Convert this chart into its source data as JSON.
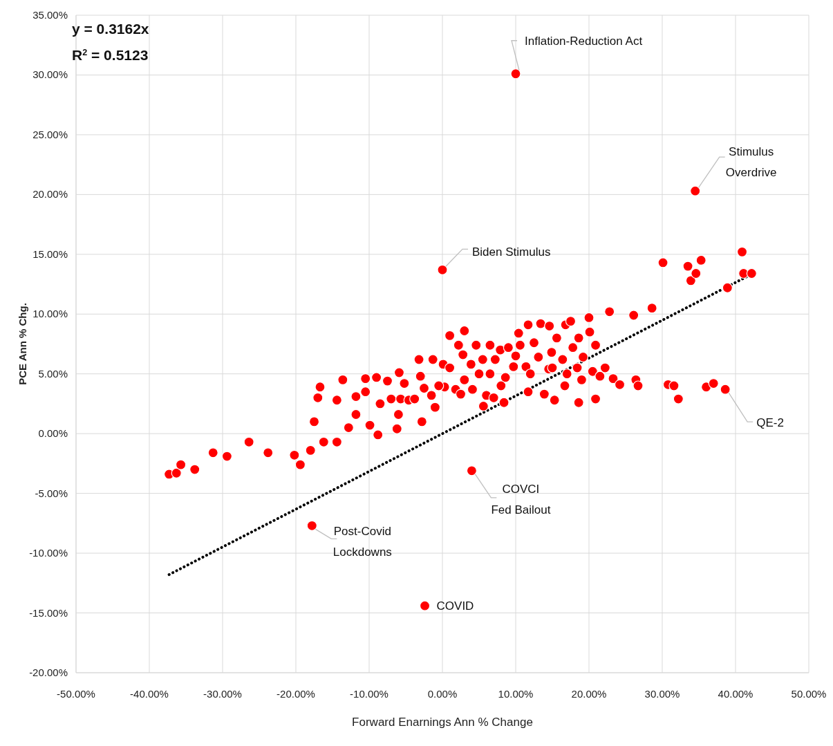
{
  "chart_data": {
    "type": "scatter",
    "xlabel": "Forward Enarnings Ann % Change",
    "ylabel": "PCE Ann % Chg.",
    "xlim": [
      -50,
      50
    ],
    "ylim": [
      -20,
      35
    ],
    "xticks": [
      {
        "value": -50,
        "label": "-50.00%"
      },
      {
        "value": -40,
        "label": "-40.00%"
      },
      {
        "value": -30,
        "label": "-30.00%"
      },
      {
        "value": -20,
        "label": "-20.00%"
      },
      {
        "value": -10,
        "label": "-10.00%"
      },
      {
        "value": 0,
        "label": "0.00%"
      },
      {
        "value": 10,
        "label": "10.00%"
      },
      {
        "value": 20,
        "label": "20.00%"
      },
      {
        "value": 30,
        "label": "30.00%"
      },
      {
        "value": 40,
        "label": "40.00%"
      },
      {
        "value": 50,
        "label": "50.00%"
      }
    ],
    "yticks": [
      {
        "value": -20,
        "label": "-20.00%"
      },
      {
        "value": -15,
        "label": "-15.00%"
      },
      {
        "value": -10,
        "label": "-10.00%"
      },
      {
        "value": -5,
        "label": "-5.00%"
      },
      {
        "value": 0,
        "label": "0.00%"
      },
      {
        "value": 5,
        "label": "5.00%"
      },
      {
        "value": 10,
        "label": "10.00%"
      },
      {
        "value": 15,
        "label": "15.00%"
      },
      {
        "value": 20,
        "label": "20.00%"
      },
      {
        "value": 25,
        "label": "25.00%"
      },
      {
        "value": 30,
        "label": "30.00%"
      },
      {
        "value": 35,
        "label": "35.00%"
      }
    ],
    "grid": true,
    "marker": "circle",
    "series": [
      {
        "color": "#ff0000",
        "x": [
          10.0,
          34.5,
          0.0,
          38.6,
          4.0,
          -17.8,
          -2.4,
          -37.3,
          -36.3,
          -35.7,
          -33.8,
          -31.3,
          -29.4,
          -26.4,
          -23.8,
          -20.2,
          -19.4,
          -18.0,
          -17.5,
          -17.0,
          -16.7,
          -16.2,
          -14.4,
          -14.4,
          -13.6,
          -12.8,
          -11.8,
          -11.8,
          -10.5,
          -10.5,
          -9.9,
          -8.8,
          -9.0,
          -8.5,
          -7.5,
          -7.0,
          -6.2,
          -6.0,
          -5.9,
          -5.7,
          -5.2,
          -4.6,
          -3.8,
          -3.2,
          -3.0,
          -2.8,
          -2.5,
          -1.5,
          -1.3,
          -1.0,
          0.1,
          0.3,
          1.0,
          1.8,
          2.2,
          2.8,
          3.0,
          3.9,
          4.1,
          4.6,
          5.5,
          5.6,
          6.0,
          6.5,
          7.2,
          7.9,
          8.4,
          8.6,
          9.0,
          9.7,
          10.4,
          10.6,
          11.4,
          11.7,
          11.7,
          12.5,
          13.1,
          13.4,
          13.9,
          14.5,
          14.6,
          14.9,
          15.3,
          15.6,
          16.4,
          16.7,
          16.8,
          17.5,
          17.8,
          18.4,
          18.6,
          18.6,
          19.2,
          20.0,
          20.1,
          20.5,
          20.9,
          20.9,
          22.2,
          22.8,
          23.3,
          24.2,
          26.1,
          26.4,
          26.7,
          28.6,
          30.1,
          30.8,
          31.6,
          32.2,
          33.5,
          33.9,
          34.6,
          35.3,
          36.0,
          37.0,
          38.9,
          40.9,
          41.1,
          42.2,
          6.5,
          8.0,
          10.0,
          12.0,
          3.0,
          5.0,
          15.0,
          17.0,
          19.0,
          21.5,
          1.0,
          -0.5,
          2.5,
          7.0
        ],
        "values": [
          30.1,
          20.3,
          13.7,
          3.7,
          -3.1,
          -7.7,
          -14.4,
          -3.4,
          -3.3,
          -2.6,
          -3.0,
          -1.6,
          -1.9,
          -0.7,
          -1.6,
          -1.8,
          -2.6,
          -1.4,
          1.0,
          3.0,
          3.9,
          -0.7,
          2.8,
          -0.7,
          4.5,
          0.5,
          1.6,
          3.1,
          3.5,
          4.6,
          0.7,
          -0.1,
          4.7,
          2.5,
          4.4,
          2.9,
          0.4,
          1.6,
          5.1,
          2.9,
          4.2,
          2.8,
          2.9,
          6.2,
          4.8,
          1.0,
          3.8,
          3.2,
          6.2,
          2.2,
          5.8,
          3.9,
          8.2,
          3.7,
          7.4,
          6.6,
          8.6,
          5.8,
          3.7,
          7.4,
          6.2,
          2.3,
          3.2,
          7.4,
          6.2,
          7.0,
          2.6,
          4.7,
          7.2,
          5.6,
          8.4,
          7.4,
          5.6,
          9.1,
          3.5,
          7.6,
          6.4,
          9.2,
          3.3,
          5.4,
          9.0,
          6.8,
          2.8,
          8.0,
          6.2,
          4.0,
          9.1,
          9.4,
          7.2,
          5.5,
          8.0,
          2.6,
          6.4,
          9.7,
          8.5,
          5.2,
          7.4,
          2.9,
          5.5,
          10.2,
          4.6,
          4.1,
          9.9,
          4.5,
          4.0,
          10.5,
          14.3,
          4.1,
          4.0,
          2.9,
          14.0,
          12.8,
          13.4,
          14.5,
          3.9,
          4.2,
          12.2,
          15.2,
          13.4,
          13.4,
          5.0,
          4.0,
          6.5,
          5.0,
          4.5,
          5.0,
          5.5,
          5.0,
          4.5,
          4.8,
          5.5,
          4.0,
          3.3,
          3.0
        ]
      },
      {
        "type": "line",
        "color": "#000000",
        "marker": "none",
        "line_style": "dotted",
        "x": [
          -37.3,
          42.2
        ],
        "values": [
          -11.79,
          13.34
        ]
      }
    ],
    "annotations": [
      "y = 0.3162x",
      "R$^{2}$ = 0.5123",
      {
        "text": "Inflation-Reduction Act",
        "x": 10.0,
        "y": 30.1
      },
      {
        "text": "Stimulus\nOverdrive",
        "x": 34.5,
        "y": 20.3
      },
      {
        "text": "Biden Stimulus",
        "x": 0.0,
        "y": 13.7
      },
      {
        "text": "QE-2",
        "x": 38.6,
        "y": 3.7
      },
      {
        "text": "COVCI\nFed Bailout",
        "x": 4.0,
        "y": -3.1
      },
      {
        "text": "Post-Covid\nLockdowns",
        "x": -17.8,
        "y": -7.7
      },
      {
        "text": "COVID",
        "x": -2.4,
        "y": -14.4
      }
    ]
  }
}
